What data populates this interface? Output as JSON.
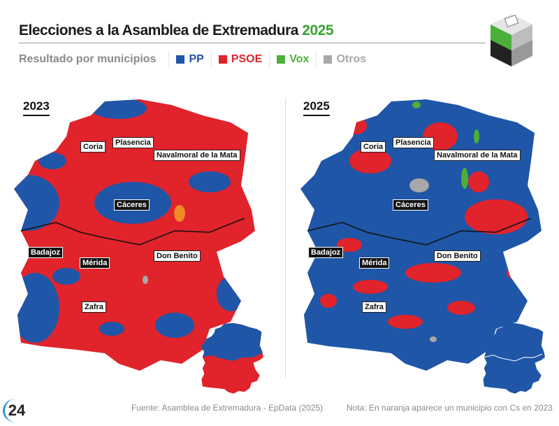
{
  "header": {
    "title": "Elecciones a la Asamblea de Extremadura",
    "title_year": "2025",
    "subtitle": "Resultado por municipios"
  },
  "legend": [
    {
      "label": "PP",
      "color": "#1f56a8"
    },
    {
      "label": "PSOE",
      "color": "#e1232b"
    },
    {
      "label": "Vox",
      "color": "#4caf3a"
    },
    {
      "label": "Otros",
      "color": "#a8a8a8"
    }
  ],
  "maps": [
    {
      "year": "2023",
      "places": {
        "coria": "Coria",
        "plasencia": "Plasencia",
        "navalmoral": "Navalmoral de la Mata",
        "caceres": "Cáceres",
        "badajoz": "Badajoz",
        "merida": "Mérida",
        "donbenito": "Don Benito",
        "zafra": "Zafra"
      },
      "colors": {
        "cs": "#f08a24"
      }
    },
    {
      "year": "2025",
      "places": {
        "coria": "Coria",
        "plasencia": "Plasencia",
        "navalmoral": "Navalmoral de la Mata",
        "caceres": "Cáceres",
        "badajoz": "Badajoz",
        "merida": "Mérida",
        "donbenito": "Don Benito",
        "zafra": "Zafra"
      }
    }
  ],
  "footer": {
    "source": "Fuente: Asamblea de Extremadura - EpData (2025)",
    "note": "Nota: En naranja aparece un municipio con Cs en 2023",
    "logo": "24"
  }
}
